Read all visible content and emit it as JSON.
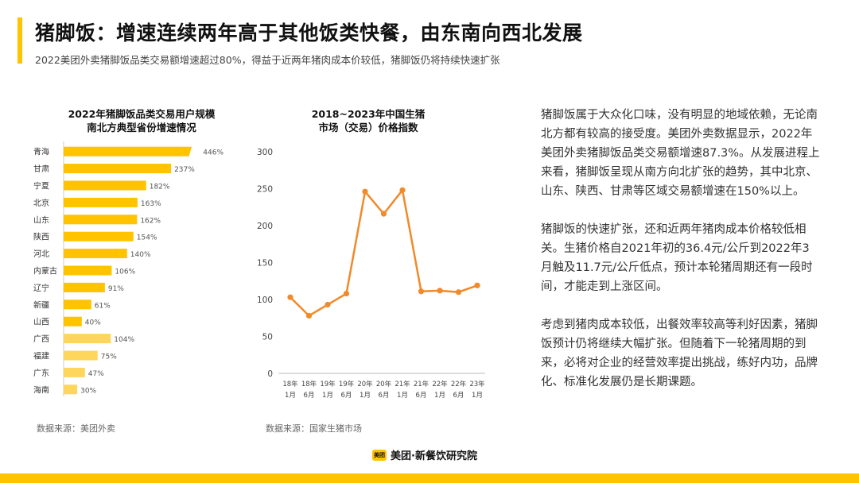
{
  "header": {
    "title": "猪脚饭：增速连续两年高于其他饭类快餐，由东南向西北发展",
    "subtitle": "2022美团外卖猪脚饭品类交易额增速超过80%，得益于近两年猪肉成本价较低，猪脚饭仍将持续快速扩张"
  },
  "colors": {
    "accent": "#FFC300",
    "accent_light": "#FFD65C",
    "line": "#F08A2A"
  },
  "left_chart": {
    "title_line1": "2022年猪脚饭品类交易用户规模",
    "title_line2": "南北方典型省份增速情况",
    "source": "数据来源：美团外卖"
  },
  "right_chart": {
    "title_line1": "2018~2023年中国生猪",
    "title_line2": "市场（交易）价格指数",
    "source": "数据来源：国家生猪市场"
  },
  "chart_data": [
    {
      "type": "bar",
      "orientation": "horizontal",
      "title": "2022年猪脚饭品类交易用户规模南北方典型省份增速情况",
      "categories": [
        "青海",
        "甘肃",
        "宁夏",
        "北京",
        "山东",
        "陕西",
        "河北",
        "内蒙古",
        "辽宁",
        "新疆",
        "山西",
        "广西",
        "福建",
        "广东",
        "海南"
      ],
      "values": [
        446,
        237,
        182,
        163,
        162,
        154,
        140,
        106,
        91,
        61,
        40,
        104,
        75,
        47,
        30
      ],
      "value_labels": [
        "446%",
        "237%",
        "182%",
        "163%",
        "162%",
        "154%",
        "140%",
        "106%",
        "91%",
        "61%",
        "40%",
        "104%",
        "75%",
        "47%",
        "30%"
      ],
      "group": [
        "north",
        "north",
        "north",
        "north",
        "north",
        "north",
        "north",
        "north",
        "north",
        "north",
        "north",
        "south",
        "south",
        "south",
        "south"
      ],
      "axis_break_on_first": true
    },
    {
      "type": "line",
      "title": "2018~2023年中国生猪市场（交易）价格指数",
      "x": [
        "18年1月",
        "18年6月",
        "19年1月",
        "19年6月",
        "20年1月",
        "20年6月",
        "21年1月",
        "21年6月",
        "22年1月",
        "22年6月",
        "23年1月"
      ],
      "x_line1": [
        "18年",
        "18年",
        "19年",
        "19年",
        "20年",
        "20年",
        "21年",
        "21年",
        "22年",
        "22年",
        "23年"
      ],
      "x_line2": [
        "1月",
        "6月",
        "1月",
        "6月",
        "1月",
        "6月",
        "1月",
        "6月",
        "1月",
        "6月",
        "1月"
      ],
      "values": [
        103,
        78,
        93,
        108,
        246,
        216,
        248,
        111,
        112,
        110,
        119
      ],
      "ylim": [
        0,
        300
      ],
      "yticks": [
        "0",
        "50",
        "100",
        "150",
        "200",
        "250",
        "300"
      ],
      "grid": false
    }
  ],
  "text": {
    "p1": "猪脚饭属于大众化口味，没有明显的地域依赖，无论南北方都有较高的接受度。美团外卖数据显示，2022年美团外卖猪脚饭品类交易额增速87.3%。从发展进程上来看，猪脚饭呈现从南方向北扩张的趋势，其中北京、山东、陕西、甘肃等区域交易额增速在150%以上。",
    "p2": "猪脚饭的快速扩张，还和近两年猪肉成本价格较低相关。生猪价格自2021年初的36.4元/公斤到2022年3月触及11.7元/公斤低点，预计本轮猪周期还有一段时间，才能走到上涨区间。",
    "p3": "考虑到猪肉成本较低，出餐效率较高等利好因素，猪脚饭预计仍将继续大幅扩张。但随着下一轮猪周期的到来，必将对企业的经营效率提出挑战，练好内功，品牌化、标准化发展仍是长期课题。"
  },
  "footer": {
    "brand_badge": "美团",
    "brand_name": "美团·新餐饮研究院"
  }
}
